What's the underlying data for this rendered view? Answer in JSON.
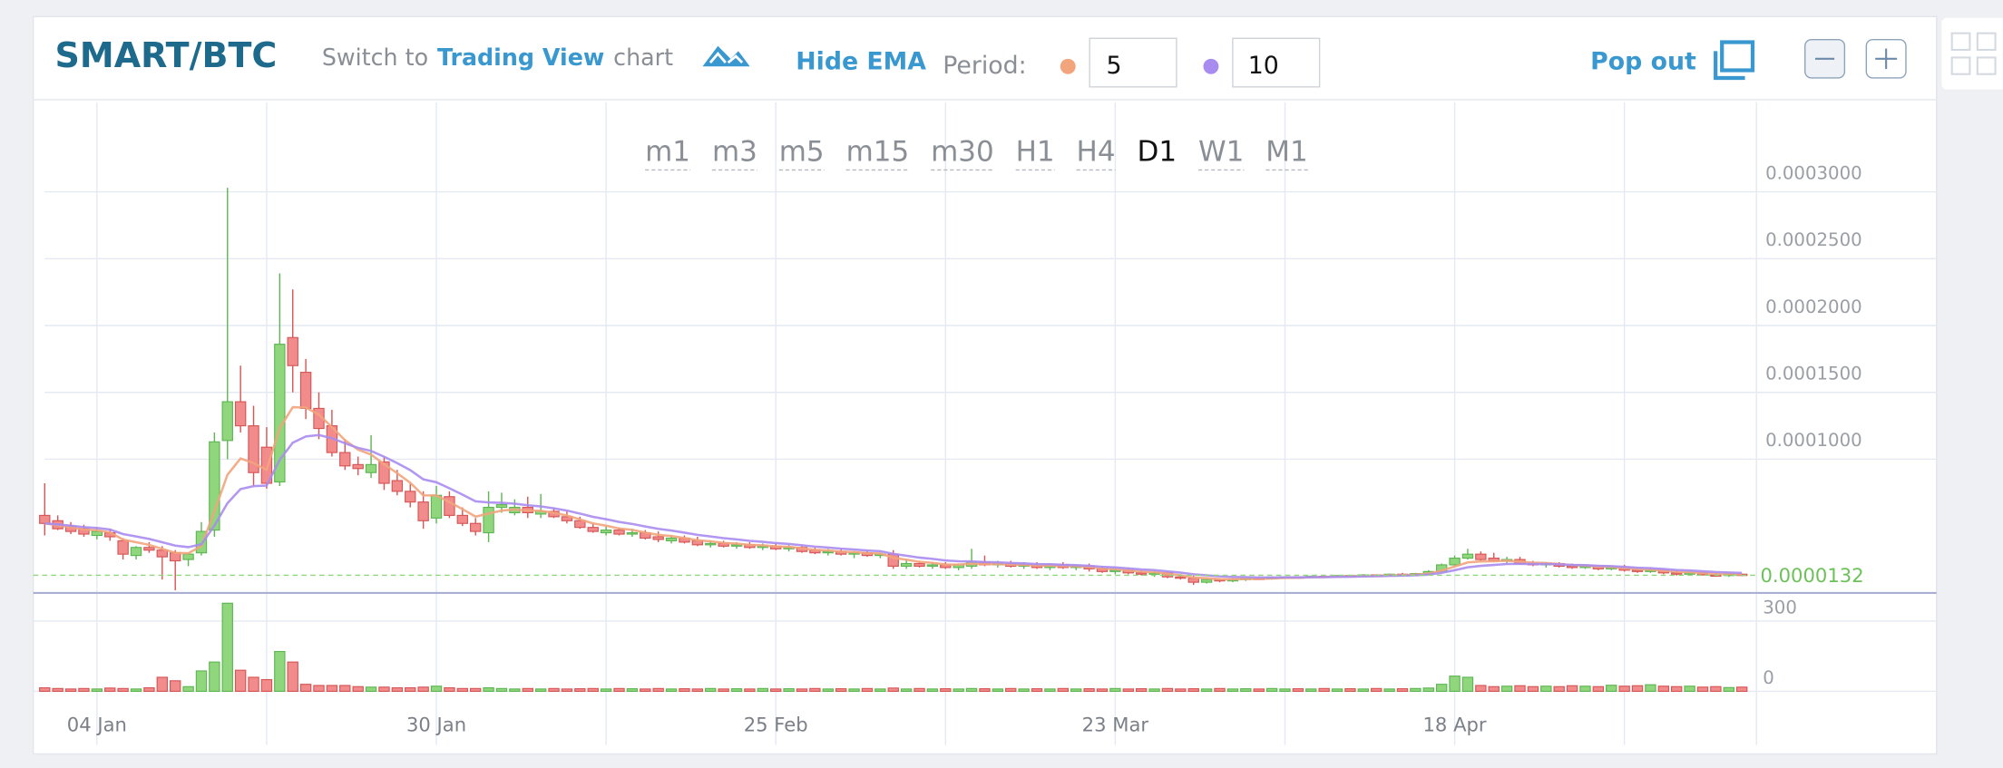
{
  "header": {
    "title": "SMART/BTC",
    "switch_prefix": "Switch to",
    "switch_link": "Trading View",
    "switch_suffix": "chart",
    "hide_ema": "Hide EMA",
    "period": "Period:",
    "pop_out": "Pop out"
  },
  "timeframes": [
    {
      "label": "m1"
    },
    {
      "label": "m3"
    },
    {
      "label": "m5"
    },
    {
      "label": "m15"
    },
    {
      "label": "m30"
    },
    {
      "label": "H1"
    },
    {
      "label": "H4"
    },
    {
      "label": "D1",
      "active": true
    },
    {
      "label": "W1"
    },
    {
      "label": "M1"
    }
  ],
  "chart_data": {
    "type": "candlestick",
    "categories": [
      null,
      null,
      null,
      null,
      "04 Jan",
      null,
      null,
      null,
      null,
      null,
      null,
      null,
      null,
      null,
      null,
      null,
      null,
      null,
      null,
      null,
      null,
      null,
      null,
      null,
      null,
      null,
      null,
      null,
      null,
      null,
      "30 Jan",
      null,
      null,
      null,
      null,
      null,
      null,
      null,
      null,
      null,
      null,
      null,
      null,
      null,
      null,
      null,
      null,
      null,
      null,
      null,
      null,
      null,
      null,
      null,
      null,
      null,
      "25 Feb",
      null,
      null,
      null,
      null,
      null,
      null,
      null,
      null,
      null,
      null,
      null,
      null,
      null,
      null,
      null,
      null,
      null,
      null,
      null,
      null,
      null,
      null,
      null,
      null,
      null,
      "23 Mar",
      null,
      null,
      null,
      null,
      null,
      null,
      null,
      null,
      null,
      null,
      null,
      null,
      null,
      null,
      null,
      null,
      null,
      null,
      null,
      null,
      null,
      null,
      null,
      null,
      null,
      "18 Apr",
      null,
      null,
      null,
      null,
      null,
      null,
      null,
      null,
      null,
      null,
      null,
      null,
      null,
      null,
      null,
      null,
      null,
      null,
      null,
      null,
      null,
      null
    ],
    "open": [
      5.8e-05,
      5.4e-05,
      5e-05,
      4.8e-05,
      4.3e-05,
      4.5e-05,
      3.9e-05,
      2.8e-05,
      3.4e-05,
      3.2e-05,
      3e-05,
      2.5e-05,
      3e-05,
      4.7e-05,
      0.000114,
      0.000143,
      0.000125,
      0.000109,
      8.3e-05,
      0.000191,
      0.000165,
      0.000138,
      0.000125,
      0.000105,
      9.6e-05,
      9e-05,
      9.8e-05,
      8.4e-05,
      7.6e-05,
      6.8e-05,
      5.6e-05,
      7.2e-05,
      5.8e-05,
      5.2e-05,
      4.5e-05,
      6.4e-05,
      6e-05,
      6.4e-05,
      5.9e-05,
      6.1e-05,
      5.7e-05,
      5.4e-05,
      4.9e-05,
      4.5e-05,
      4.7e-05,
      4.4e-05,
      4.5e-05,
      4.2e-05,
      3.9e-05,
      4.1e-05,
      3.9e-05,
      3.6e-05,
      3.7e-05,
      3.5e-05,
      3.6e-05,
      3.4e-05,
      3.5e-05,
      3.3e-05,
      3.4e-05,
      3.2e-05,
      3e-05,
      3.1e-05,
      2.9e-05,
      3e-05,
      2.8e-05,
      2.9e-05,
      2e-05,
      2.2e-05,
      2e-05,
      2.1e-05,
      1.9e-05,
      2e-05,
      2.3e-05,
      2.1e-05,
      2.2e-05,
      2e-05,
      2.1e-05,
      1.9e-05,
      2.1e-05,
      1.9e-05,
      2e-05,
      1.8e-05,
      1.6e-05,
      1.7e-05,
      1.5e-05,
      1.4e-05,
      1.5e-05,
      1.2e-05,
      1.1e-05,
      8e-06,
      1e-05,
      9e-06,
      1e-05,
      1.1e-05,
      1.05e-05,
      1.15e-05,
      1.2e-05,
      1.15e-05,
      1.25e-05,
      1.2e-05,
      1.3e-05,
      1.25e-05,
      1.35e-05,
      1.3e-05,
      1.4e-05,
      1.35e-05,
      1.45e-05,
      1.6e-05,
      2.1e-05,
      2.6e-05,
      2.9e-05,
      2.6e-05,
      2.4e-05,
      2.5e-05,
      2.2e-05,
      2.1e-05,
      2.2e-05,
      2e-05,
      1.9e-05,
      2e-05,
      1.8e-05,
      1.9e-05,
      1.7e-05,
      1.6e-05,
      1.7e-05,
      1.5e-05,
      1.4e-05,
      1.5e-05,
      1.35e-05,
      1.3e-05,
      1.4e-05
    ],
    "high": [
      8.2e-05,
      5.8e-05,
      5.3e-05,
      5.1e-05,
      4.9e-05,
      4.8e-05,
      4.1e-05,
      3.5e-05,
      3.8e-05,
      3.5e-05,
      3.2e-05,
      3e-05,
      5.3e-05,
      0.00012,
      0.000303,
      0.00017,
      0.00014,
      0.000124,
      0.000239,
      0.000227,
      0.000175,
      0.00015,
      0.000137,
      0.000115,
      0.000102,
      0.000118,
      0.000102,
      9.2e-05,
      8.2e-05,
      7.6e-05,
      8e-05,
      7.6e-05,
      6.4e-05,
      5.6e-05,
      7.6e-05,
      7.5e-05,
      7e-05,
      7.2e-05,
      7.4e-05,
      6.4e-05,
      6.1e-05,
      5.7e-05,
      5.2e-05,
      5e-05,
      4.9e-05,
      4.8e-05,
      4.7e-05,
      4.6e-05,
      4.3e-05,
      4.3e-05,
      4.2e-05,
      3.9e-05,
      3.9e-05,
      3.8e-05,
      3.8e-05,
      3.7e-05,
      3.7e-05,
      3.6e-05,
      3.6e-05,
      3.4e-05,
      3.3e-05,
      3.3e-05,
      3.1e-05,
      3.2e-05,
      3e-05,
      3.2e-05,
      2.5e-05,
      2.4e-05,
      2.3e-05,
      2.3e-05,
      2.2e-05,
      3.3e-05,
      2.8e-05,
      2.4e-05,
      2.4e-05,
      2.3e-05,
      2.3e-05,
      2.2e-05,
      2.3e-05,
      2.1e-05,
      2.2e-05,
      2e-05,
      1.9e-05,
      1.9e-05,
      1.7e-05,
      1.7e-05,
      1.6e-05,
      1.4e-05,
      1.3e-05,
      1.1e-05,
      1.1e-05,
      1.1e-05,
      1.2e-05,
      1.2e-05,
      1.2e-05,
      1.25e-05,
      1.25e-05,
      1.3e-05,
      1.3e-05,
      1.35e-05,
      1.35e-05,
      1.4e-05,
      1.4e-05,
      1.45e-05,
      1.5e-05,
      1.5e-05,
      1.7e-05,
      2.2e-05,
      2.8e-05,
      3.3e-05,
      3.1e-05,
      3e-05,
      2.7e-05,
      2.7e-05,
      2.4e-05,
      2.3e-05,
      2.3e-05,
      2.2e-05,
      2.1e-05,
      2.1e-05,
      2e-05,
      2.1e-05,
      1.8e-05,
      1.9e-05,
      1.8e-05,
      1.7e-05,
      1.6e-05,
      1.6e-05,
      1.5e-05,
      1.45e-05,
      1.45e-05
    ],
    "low": [
      4.3e-05,
      4.7e-05,
      4.4e-05,
      4.2e-05,
      4e-05,
      3.9e-05,
      2.5e-05,
      2.5e-05,
      3e-05,
      1e-05,
      2e-06,
      2e-05,
      2.8e-05,
      4.2e-05,
      0.0001,
      0.00012,
      8e-05,
      7.8e-05,
      8e-05,
      0.00015,
      0.00013,
      0.000115,
      0.000102,
      9.2e-05,
      8.8e-05,
      8.6e-05,
      7.7e-05,
      7.3e-05,
      6.4e-05,
      4.8e-05,
      5.2e-05,
      5.6e-05,
      5e-05,
      4.3e-05,
      3.8e-05,
      6e-05,
      5.8e-05,
      5.6e-05,
      5.6e-05,
      5.6e-05,
      5.2e-05,
      4.8e-05,
      4.5e-05,
      4.3e-05,
      4.3e-05,
      4.2e-05,
      4e-05,
      3.8e-05,
      3.7e-05,
      3.7e-05,
      3.5e-05,
      3.4e-05,
      3.4e-05,
      3.3e-05,
      3.3e-05,
      3.2e-05,
      3.2e-05,
      3.1e-05,
      3e-05,
      2.9e-05,
      2.8e-05,
      2.8e-05,
      2.6e-05,
      2.7e-05,
      2.6e-05,
      1.8e-05,
      1.8e-05,
      1.9e-05,
      1.8e-05,
      1.8e-05,
      1.7e-05,
      1.8e-05,
      2e-05,
      1.9e-05,
      1.9e-05,
      1.8e-05,
      1.8e-05,
      1.7e-05,
      1.8e-05,
      1.7e-05,
      1.6e-05,
      1.5e-05,
      1.4e-05,
      1.4e-05,
      1.3e-05,
      1.2e-05,
      1.1e-05,
      1e-05,
      6e-06,
      7e-06,
      8e-06,
      8e-06,
      9e-06,
      1e-05,
      1e-05,
      1.05e-05,
      1.1e-05,
      1.1e-05,
      1.15e-05,
      1.15e-05,
      1.2e-05,
      1.2e-05,
      1.25e-05,
      1.25e-05,
      1.3e-05,
      1.3e-05,
      1.4e-05,
      1.5e-05,
      2e-05,
      2.5e-05,
      2.4e-05,
      2.3e-05,
      2.2e-05,
      2.1e-05,
      2e-05,
      1.9e-05,
      1.9e-05,
      1.8e-05,
      1.8e-05,
      1.7e-05,
      1.7e-05,
      1.6e-05,
      1.5e-05,
      1.5e-05,
      1.4e-05,
      1.3e-05,
      1.3e-05,
      1.3e-05,
      1.2e-05,
      1.2e-05,
      1.25e-05
    ],
    "close": [
      5.2e-05,
      4.8e-05,
      4.6e-05,
      4.4e-05,
      4.6e-05,
      4.2e-05,
      2.9e-05,
      3.4e-05,
      3.2e-05,
      2.7e-05,
      2.4e-05,
      2.9e-05,
      4.6e-05,
      0.000113,
      0.000143,
      0.000125,
      9e-05,
      8.2e-05,
      0.000186,
      0.00017,
      0.000138,
      0.000123,
      0.000105,
      9.5e-05,
      9.3e-05,
      9.6e-05,
      8.2e-05,
      7.6e-05,
      6.8e-05,
      5.4e-05,
      7.3e-05,
      5.8e-05,
      5.2e-05,
      4.6e-05,
      6.4e-05,
      6.6e-05,
      6.4e-05,
      6e-05,
      6.1e-05,
      5.7e-05,
      5.4e-05,
      4.9e-05,
      4.6e-05,
      4.7e-05,
      4.4e-05,
      4.5e-05,
      4.1e-05,
      4e-05,
      4.1e-05,
      3.8e-05,
      3.6e-05,
      3.7e-05,
      3.5e-05,
      3.6e-05,
      3.4e-05,
      3.5e-05,
      3.3e-05,
      3.4e-05,
      3.1e-05,
      3e-05,
      3.1e-05,
      2.9e-05,
      3e-05,
      2.8e-05,
      2.9e-05,
      2e-05,
      2.2e-05,
      2e-05,
      2.1e-05,
      1.9e-05,
      2.1e-05,
      2.3e-05,
      2.1e-05,
      2.2e-05,
      2e-05,
      2.1e-05,
      1.9e-05,
      2.1e-05,
      1.9e-05,
      2e-05,
      1.8e-05,
      1.6e-05,
      1.7e-05,
      1.5e-05,
      1.4e-05,
      1.5e-05,
      1.2e-05,
      1.1e-05,
      8e-06,
      1e-05,
      9e-06,
      1e-05,
      1.1e-05,
      1.05e-05,
      1.15e-05,
      1.2e-05,
      1.15e-05,
      1.25e-05,
      1.2e-05,
      1.3e-05,
      1.25e-05,
      1.35e-05,
      1.3e-05,
      1.4e-05,
      1.35e-05,
      1.45e-05,
      1.6e-05,
      2.1e-05,
      2.6e-05,
      2.9e-05,
      2.5e-05,
      2.4e-05,
      2.5e-05,
      2.2e-05,
      2.1e-05,
      2.2e-05,
      2e-05,
      1.9e-05,
      2e-05,
      1.8e-05,
      1.9e-05,
      1.7e-05,
      1.6e-05,
      1.7e-05,
      1.5e-05,
      1.4e-05,
      1.5e-05,
      1.35e-05,
      1.3e-05,
      1.4e-05,
      1.32e-05
    ],
    "volume": [
      15,
      12,
      10,
      12,
      10,
      14,
      12,
      10,
      15,
      60,
      45,
      20,
      87,
      125,
      376,
      90,
      60,
      50,
      170,
      125,
      30,
      25,
      25,
      25,
      20,
      18,
      18,
      15,
      15,
      18,
      22,
      15,
      12,
      12,
      15,
      12,
      10,
      12,
      10,
      12,
      10,
      11,
      12,
      10,
      12,
      11,
      10,
      12,
      10,
      11,
      10,
      12,
      10,
      11,
      10,
      12,
      10,
      11,
      10,
      12,
      10,
      11,
      10,
      12,
      10,
      14,
      10,
      12,
      10,
      11,
      10,
      12,
      11,
      10,
      12,
      10,
      11,
      10,
      12,
      10,
      11,
      10,
      12,
      10,
      11,
      10,
      12,
      10,
      11,
      10,
      12,
      10,
      11,
      10,
      12,
      10,
      11,
      10,
      12,
      10,
      11,
      10,
      12,
      10,
      11,
      12,
      14,
      30,
      65,
      60,
      25,
      20,
      22,
      24,
      20,
      22,
      20,
      24,
      22,
      20,
      26,
      22,
      24,
      28,
      22,
      20,
      22,
      18,
      20,
      16,
      18
    ],
    "up_color": "#90d67c",
    "down_color": "#f28b8b",
    "ema": [
      {
        "period": 5,
        "color": "#f2a47c"
      },
      {
        "period": 10,
        "color": "#a98cf0"
      }
    ],
    "last_price": {
      "value": 1.32e-05,
      "label": "0.0000132"
    },
    "ylim": [
      0,
      0.000367
    ],
    "yticks": [
      {
        "value": 0.0001,
        "label": "0.0001000"
      },
      {
        "value": 0.00015,
        "label": "0.0001500"
      },
      {
        "value": 0.0002,
        "label": "0.0002000"
      },
      {
        "value": 0.00025,
        "label": "0.0002500"
      },
      {
        "value": 0.0003,
        "label": "0.0003000"
      }
    ],
    "volume_ylim": [
      0,
      420
    ],
    "volume_ticks": [
      0,
      300
    ],
    "grid": true
  }
}
